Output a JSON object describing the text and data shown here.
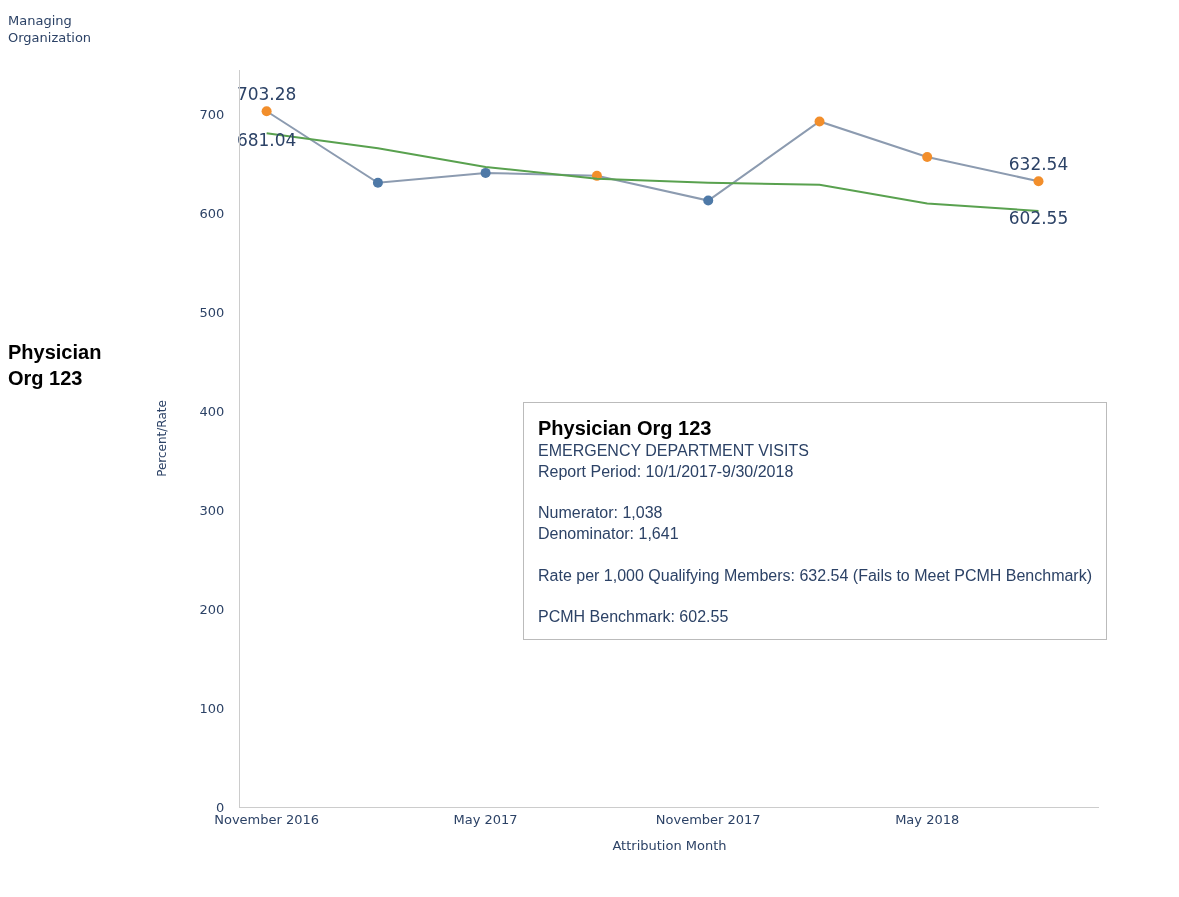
{
  "chart_data": {
    "type": "line",
    "x": [
      "2016-11",
      "2017-02",
      "2017-05",
      "2017-08",
      "2017-11",
      "2018-02",
      "2018-05",
      "2018-08"
    ],
    "series": [
      {
        "color": "#8c9bb0",
        "colors": [
          "#f28e2b",
          "#4e79a7",
          "#4e79a7",
          "#f28e2b",
          "#4e79a7",
          "#f28e2b",
          "#f28e2b",
          "#f28e2b"
        ],
        "values": [
          703.28,
          631,
          641,
          638,
          613,
          693,
          657,
          632.54
        ],
        "value_labels": [
          "703.28",
          null,
          null,
          null,
          null,
          null,
          null,
          "632.54"
        ],
        "marker": "circle"
      },
      {
        "color": "#59a14f",
        "values": [
          681.04,
          666,
          647,
          635,
          631,
          629,
          610,
          602.55
        ],
        "value_labels": [
          "681.04",
          null,
          null,
          null,
          null,
          null,
          null,
          "602.55"
        ],
        "marker": "none"
      }
    ],
    "xlabel": "Attribution Month",
    "ylabel": "Percent/Rate",
    "xlim": [
      "2016-10-10",
      "2018-09-20"
    ],
    "xticks": [
      {
        "value": "2016-11",
        "label": "November 2016"
      },
      {
        "value": "2017-05",
        "label": "May 2017"
      },
      {
        "value": "2017-11",
        "label": "November 2017"
      },
      {
        "value": "2018-05",
        "label": "May 2018"
      }
    ],
    "ylim": [
      0,
      745
    ],
    "yticks": [
      0,
      100,
      200,
      300,
      400,
      500,
      600,
      700
    ],
    "legend": false,
    "line_style": "solid",
    "annotations": [
      "Managing\nOrganization",
      "Physician\nOrg 123",
      "Physician Org 123\nEMERGENCY DEPARTMENT VISITS\nReport Period: 10/1/2017-9/30/2018\n\nNumerator: 1,038\nDenominator: 1,641\n\nRate per 1,000 Qualifying Members: 632.54 (Fails to Meet PCMH Benchmark)\n\nPCMH Benchmark: 602.55"
    ]
  }
}
